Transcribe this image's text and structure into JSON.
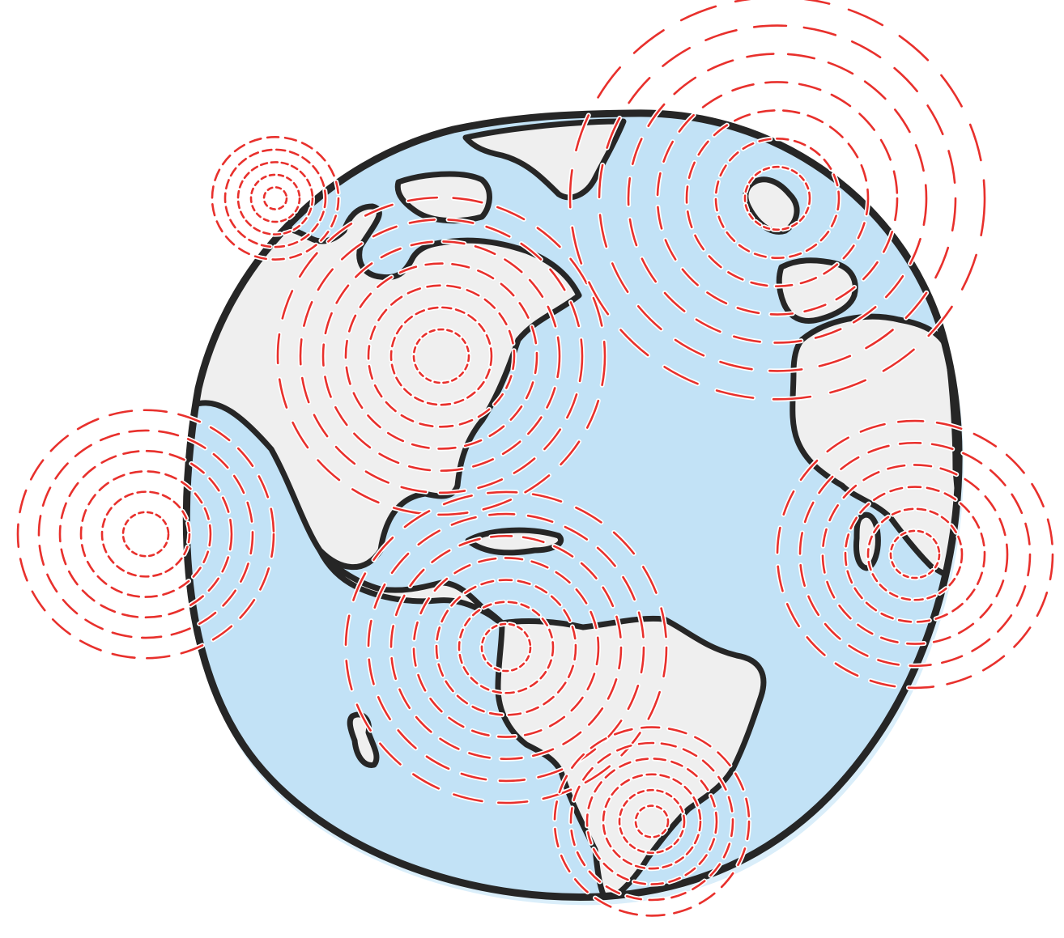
{
  "illustration": {
    "subject": "globe-with-signal-rings",
    "colors": {
      "ocean": "#c2e2f6",
      "land": "#efefef",
      "outline": "#262626",
      "rings": "#e8302c",
      "ring_halo": "#ffffff",
      "background": "#ffffff"
    },
    "signal_sources": [
      {
        "id": "arctic-canada",
        "ring_count": 5
      },
      {
        "id": "north-america",
        "ring_count": 7
      },
      {
        "id": "pacific-west",
        "ring_count": 6
      },
      {
        "id": "europe",
        "ring_count": 7
      },
      {
        "id": "central-america",
        "ring_count": 7
      },
      {
        "id": "west-africa",
        "ring_count": 6
      },
      {
        "id": "south-america",
        "ring_count": 6
      }
    ]
  }
}
